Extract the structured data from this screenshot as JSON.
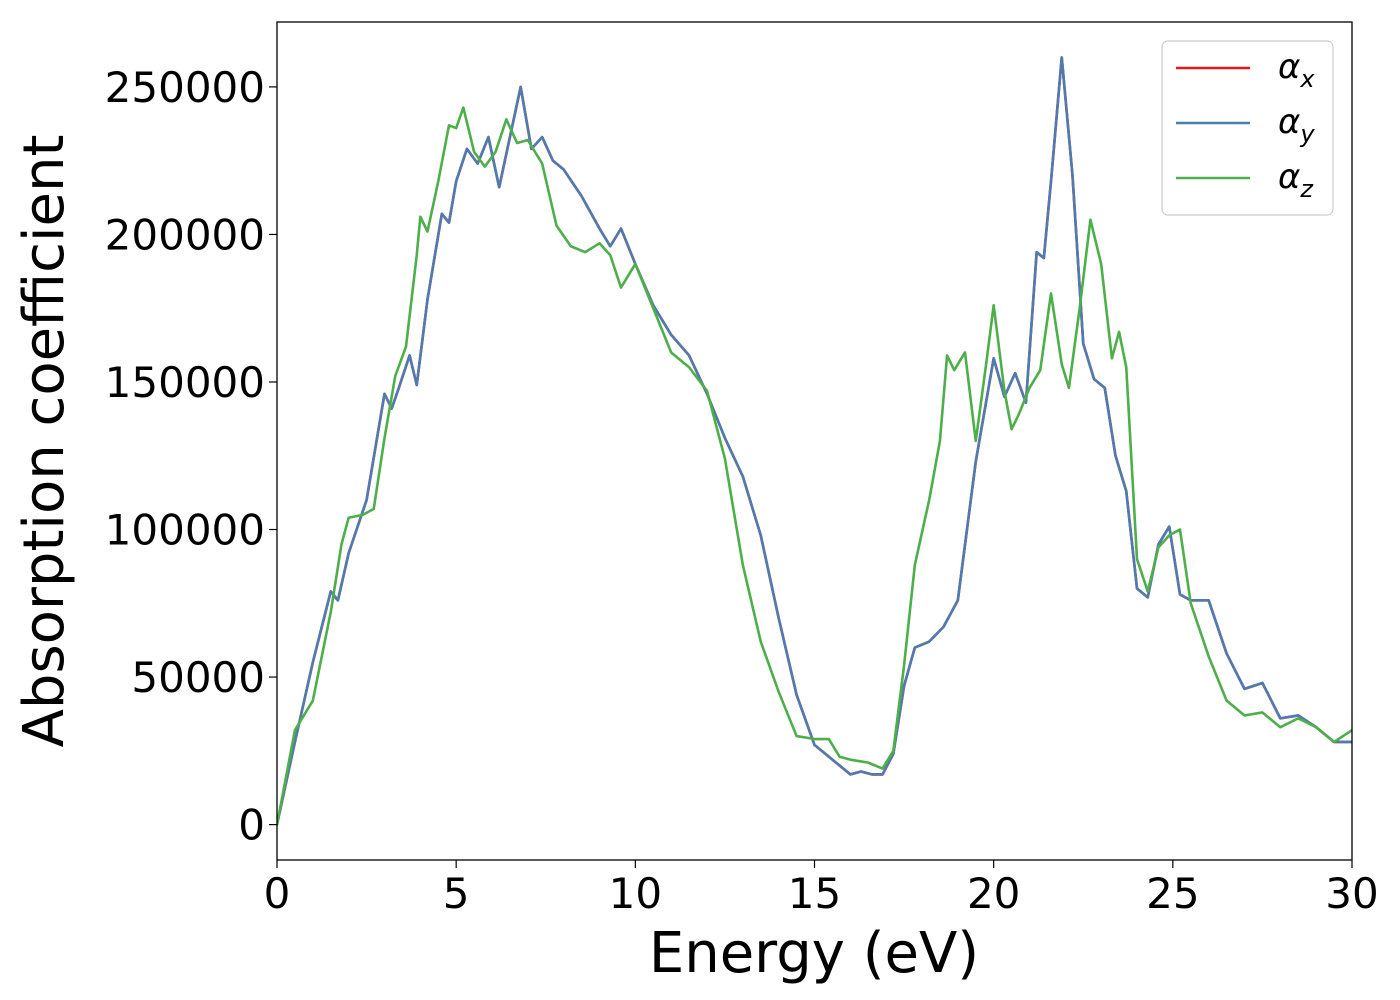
{
  "chart_data": {
    "type": "line",
    "title": "",
    "xlabel": "Energy (eV)",
    "ylabel": "Absorption coefficient",
    "xlim": [
      0,
      30
    ],
    "ylim": [
      -12000,
      272000
    ],
    "xticks": [
      0,
      5,
      10,
      15,
      20,
      25,
      30
    ],
    "yticks": [
      0,
      50000,
      100000,
      150000,
      200000,
      250000
    ],
    "xtick_labels": [
      "0",
      "5",
      "10",
      "15",
      "20",
      "25",
      "30"
    ],
    "ytick_labels": [
      "0",
      "50000",
      "100000",
      "150000",
      "200000",
      "250000"
    ],
    "grid": false,
    "legend_position": "top-right",
    "series": [
      {
        "name": "αx",
        "legend_base": "α",
        "legend_sub": "x",
        "color": "#e41a1c",
        "x": [
          0,
          0.5,
          1.0,
          1.5,
          1.7,
          2.0,
          2.5,
          3.0,
          3.2,
          3.4,
          3.7,
          3.9,
          4.2,
          4.6,
          4.8,
          5.0,
          5.3,
          5.6,
          5.9,
          6.2,
          6.5,
          6.8,
          7.1,
          7.4,
          7.7,
          8.0,
          8.5,
          9.0,
          9.3,
          9.6,
          10.0,
          10.5,
          11.0,
          11.5,
          12.0,
          12.5,
          13.0,
          13.5,
          14.0,
          14.5,
          15.0,
          15.5,
          16.0,
          16.3,
          16.6,
          16.9,
          17.2,
          17.5,
          17.8,
          18.2,
          18.6,
          19.0,
          19.5,
          20.0,
          20.3,
          20.6,
          20.9,
          21.2,
          21.4,
          21.6,
          21.9,
          22.2,
          22.5,
          22.8,
          23.1,
          23.4,
          23.7,
          24.0,
          24.3,
          24.6,
          24.9,
          25.2,
          25.5,
          26.0,
          26.5,
          27.0,
          27.5,
          28.0,
          28.5,
          29.0,
          29.5,
          30.0
        ],
        "y": [
          0,
          28000,
          55000,
          79000,
          76000,
          92000,
          110000,
          146000,
          141000,
          148000,
          159000,
          149000,
          178000,
          207000,
          204000,
          218000,
          229000,
          224000,
          233000,
          216000,
          233000,
          250000,
          229000,
          233000,
          225000,
          222000,
          213000,
          202000,
          196000,
          202000,
          190000,
          176000,
          166000,
          159000,
          146000,
          131000,
          118000,
          98000,
          70000,
          44000,
          27000,
          22000,
          17000,
          18000,
          17000,
          17000,
          24000,
          47000,
          60000,
          62000,
          67000,
          76000,
          123000,
          158000,
          145000,
          153000,
          143000,
          194000,
          192000,
          218000,
          260000,
          220000,
          163000,
          151000,
          148000,
          125000,
          113000,
          80000,
          77000,
          95000,
          101000,
          78000,
          76000,
          76000,
          58000,
          46000,
          48000,
          36000,
          37000,
          33000,
          28000,
          28000
        ]
      },
      {
        "name": "αy",
        "legend_base": "α",
        "legend_sub": "y",
        "color": "#4e7bb0",
        "x": [
          0,
          0.5,
          1.0,
          1.5,
          1.7,
          2.0,
          2.5,
          3.0,
          3.2,
          3.4,
          3.7,
          3.9,
          4.2,
          4.6,
          4.8,
          5.0,
          5.3,
          5.6,
          5.9,
          6.2,
          6.5,
          6.8,
          7.1,
          7.4,
          7.7,
          8.0,
          8.5,
          9.0,
          9.3,
          9.6,
          10.0,
          10.5,
          11.0,
          11.5,
          12.0,
          12.5,
          13.0,
          13.5,
          14.0,
          14.5,
          15.0,
          15.5,
          16.0,
          16.3,
          16.6,
          16.9,
          17.2,
          17.5,
          17.8,
          18.2,
          18.6,
          19.0,
          19.5,
          20.0,
          20.3,
          20.6,
          20.9,
          21.2,
          21.4,
          21.6,
          21.9,
          22.2,
          22.5,
          22.8,
          23.1,
          23.4,
          23.7,
          24.0,
          24.3,
          24.6,
          24.9,
          25.2,
          25.5,
          26.0,
          26.5,
          27.0,
          27.5,
          28.0,
          28.5,
          29.0,
          29.5,
          30.0
        ],
        "y": [
          0,
          28000,
          55000,
          79000,
          76000,
          92000,
          110000,
          146000,
          141000,
          148000,
          159000,
          149000,
          178000,
          207000,
          204000,
          218000,
          229000,
          224000,
          233000,
          216000,
          233000,
          250000,
          229000,
          233000,
          225000,
          222000,
          213000,
          202000,
          196000,
          202000,
          190000,
          176000,
          166000,
          159000,
          146000,
          131000,
          118000,
          98000,
          70000,
          44000,
          27000,
          22000,
          17000,
          18000,
          17000,
          17000,
          24000,
          47000,
          60000,
          62000,
          67000,
          76000,
          123000,
          158000,
          145000,
          153000,
          143000,
          194000,
          192000,
          218000,
          260000,
          220000,
          163000,
          151000,
          148000,
          125000,
          113000,
          80000,
          77000,
          95000,
          101000,
          78000,
          76000,
          76000,
          58000,
          46000,
          48000,
          36000,
          37000,
          33000,
          28000,
          28000
        ]
      },
      {
        "name": "αz",
        "legend_base": "α",
        "legend_sub": "z",
        "color": "#4daf4a",
        "x": [
          0,
          0.5,
          1.0,
          1.5,
          1.8,
          2.0,
          2.4,
          2.7,
          3.0,
          3.3,
          3.6,
          3.9,
          4.0,
          4.2,
          4.5,
          4.8,
          5.0,
          5.2,
          5.5,
          5.8,
          6.1,
          6.4,
          6.7,
          7.0,
          7.4,
          7.8,
          8.2,
          8.6,
          9.0,
          9.3,
          9.6,
          10.0,
          10.5,
          11.0,
          11.5,
          12.0,
          12.5,
          13.0,
          13.5,
          14.0,
          14.5,
          15.0,
          15.4,
          15.7,
          16.0,
          16.5,
          16.9,
          17.2,
          17.5,
          17.8,
          18.2,
          18.5,
          18.7,
          18.9,
          19.2,
          19.5,
          19.8,
          20.0,
          20.3,
          20.5,
          20.7,
          21.0,
          21.3,
          21.6,
          21.9,
          22.1,
          22.4,
          22.7,
          23.0,
          23.3,
          23.5,
          23.7,
          24.0,
          24.3,
          24.6,
          24.9,
          25.2,
          25.5,
          26.0,
          26.5,
          27.0,
          27.5,
          28.0,
          28.5,
          29.0,
          29.5,
          30.0
        ],
        "y": [
          0,
          32000,
          42000,
          72000,
          95000,
          104000,
          105000,
          107000,
          131000,
          152000,
          162000,
          193000,
          206000,
          201000,
          218000,
          237000,
          236000,
          243000,
          228000,
          223000,
          228000,
          239000,
          231000,
          232000,
          224000,
          203000,
          196000,
          194000,
          197000,
          193000,
          182000,
          190000,
          175000,
          160000,
          155000,
          147000,
          124000,
          88000,
          62000,
          45000,
          30000,
          29000,
          29000,
          23000,
          22000,
          21000,
          19000,
          25000,
          54000,
          88000,
          110000,
          130000,
          159000,
          154000,
          160000,
          130000,
          157000,
          176000,
          147000,
          134000,
          139000,
          148000,
          154000,
          180000,
          156000,
          148000,
          175000,
          205000,
          190000,
          158000,
          167000,
          155000,
          90000,
          79000,
          94000,
          98000,
          100000,
          75000,
          57000,
          42000,
          37000,
          38000,
          33000,
          36000,
          33000,
          28000,
          32000
        ]
      }
    ]
  }
}
